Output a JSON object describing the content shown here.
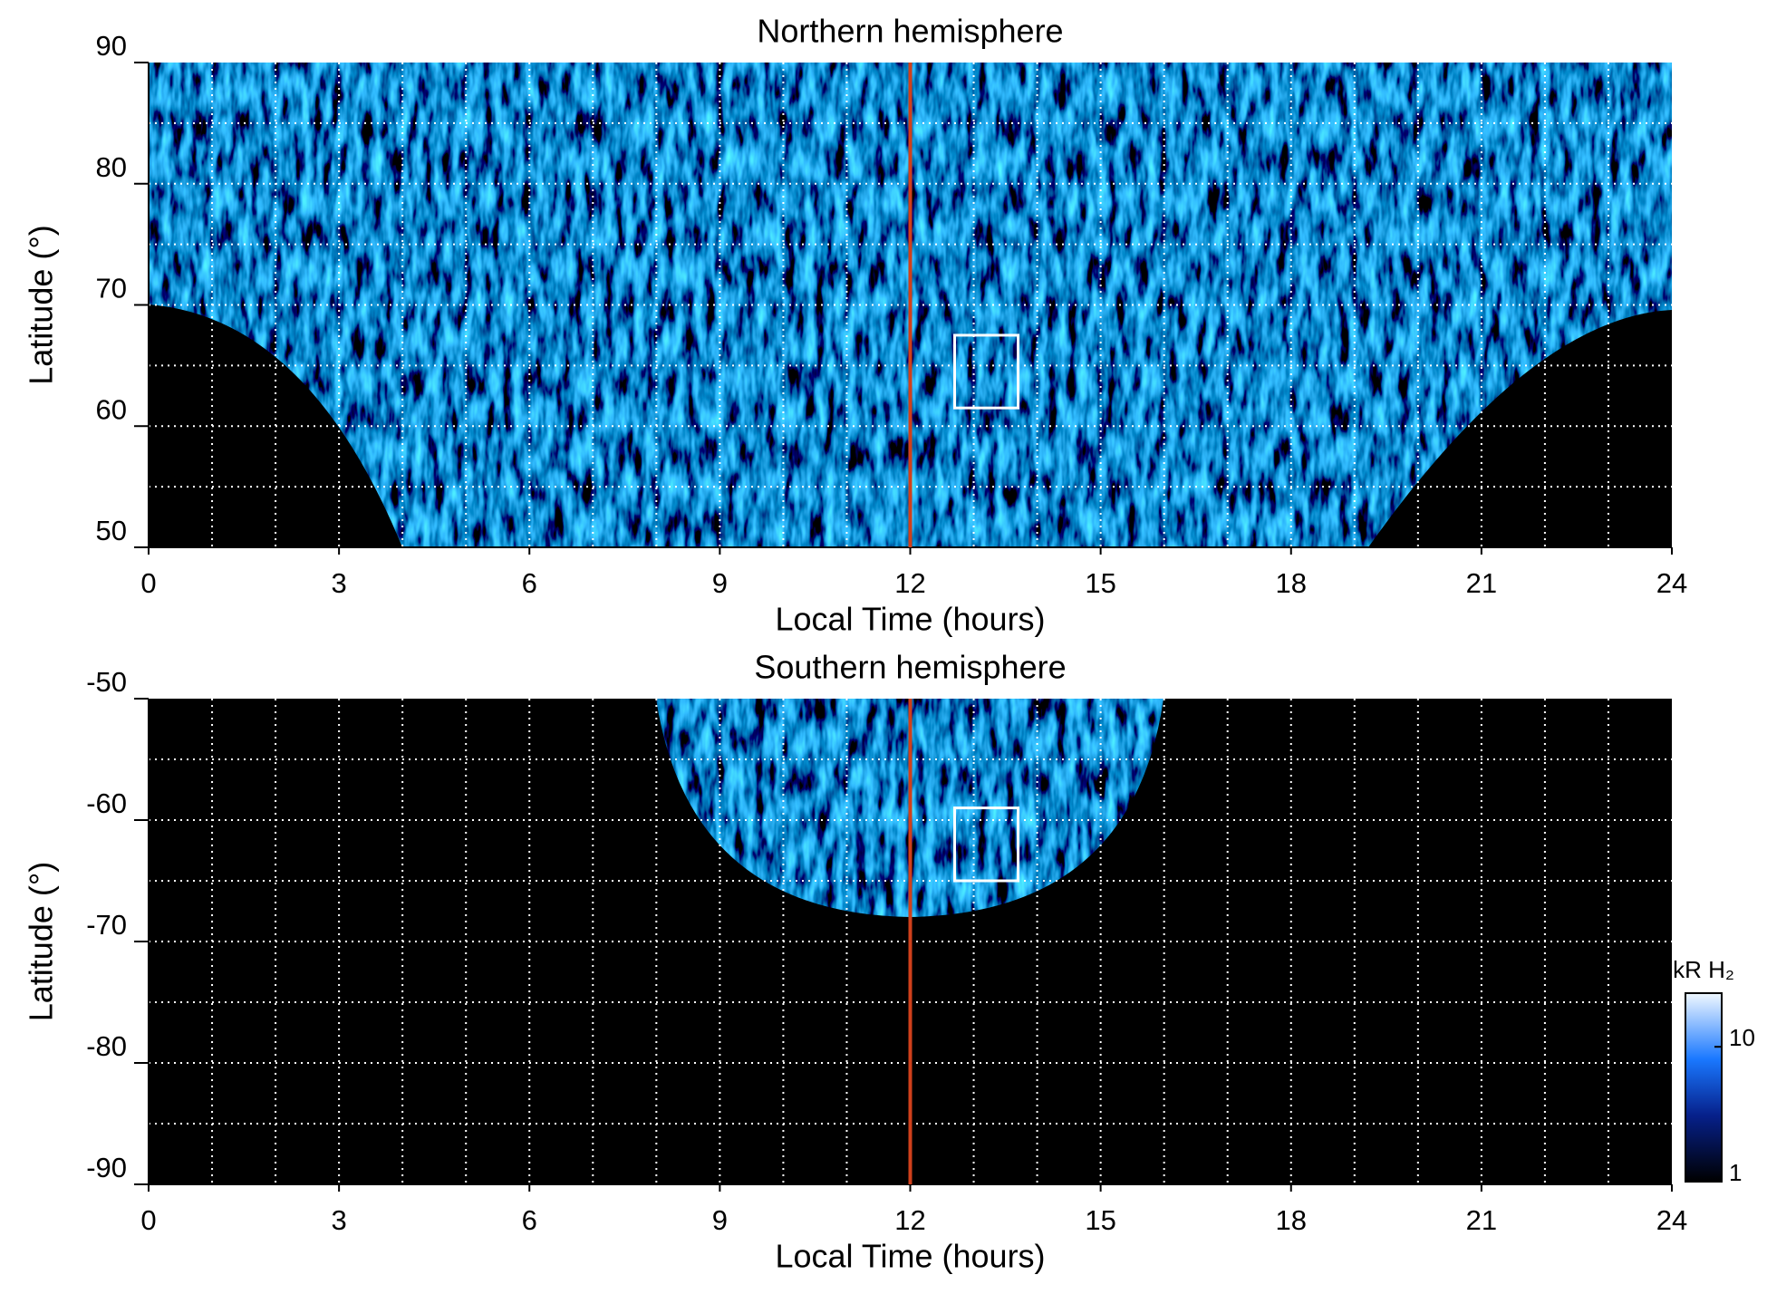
{
  "chart_data": [
    {
      "type": "heatmap",
      "title": "Northern hemisphere",
      "x_label": "Local Time (hours)",
      "y_label": "Latitude (°)",
      "xlim": [
        0,
        24
      ],
      "xticks": [
        0,
        3,
        6,
        9,
        12,
        15,
        18,
        21,
        24
      ],
      "ylim": [
        50,
        90
      ],
      "yticks": [
        50,
        60,
        70,
        80,
        90
      ],
      "grid": true,
      "xgrid_step": 1,
      "ygrid_step": 5,
      "reference_line": {
        "x": 12,
        "color": "#d0401b"
      },
      "box": {
        "x": [
          12.7,
          13.7
        ],
        "y": [
          61.5,
          67.5
        ],
        "color": "#ffffff"
      }
    },
    {
      "type": "heatmap",
      "title": "Southern hemisphere",
      "x_label": "Local Time (hours)",
      "y_label": "Latitude (°)",
      "xlim": [
        0,
        24
      ],
      "xticks": [
        0,
        3,
        6,
        9,
        12,
        15,
        18,
        21,
        24
      ],
      "ylim": [
        -90,
        -50
      ],
      "yticks": [
        -90,
        -80,
        -70,
        -60,
        -50
      ],
      "grid": true,
      "xgrid_step": 1,
      "ygrid_step": 5,
      "reference_line": {
        "x": 12,
        "color": "#d0401b"
      },
      "box": {
        "x": [
          12.7,
          13.7
        ],
        "y": [
          -65,
          -59
        ],
        "color": "#ffffff"
      },
      "colorbar": {
        "label": "kR H₂",
        "log": true,
        "lim": [
          1,
          25
        ],
        "ticks": [
          1,
          10
        ]
      }
    }
  ]
}
